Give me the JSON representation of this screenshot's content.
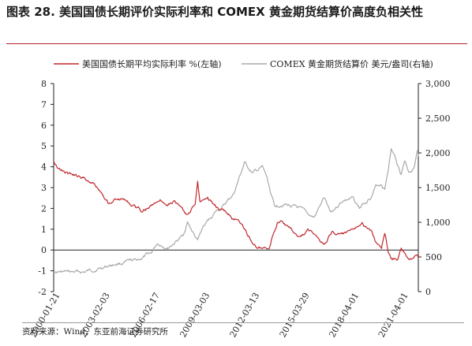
{
  "header": {
    "title": "图表 28. 美国国债长期评价实际利率和 COMEX 黄金期货结算价高度负相关性"
  },
  "footer": {
    "source": "资料来源：Wind，东亚前海证券研究所"
  },
  "colors": {
    "rate_series": "#c0282d",
    "gold_series": "#a9a9a9",
    "title_rule": "#b02020"
  },
  "chart_data": {
    "type": "line",
    "title": "",
    "xlabel": "",
    "ylabel_left": "",
    "ylabel_right": "",
    "x_ticks": [
      "2000-01-21",
      "2003-02-03",
      "2006-02-17",
      "2009-03-03",
      "2012-03-13",
      "2015-03-29",
      "2018-04-01",
      "2021-04-01"
    ],
    "y_left_ticks": [
      "8",
      "7",
      "6",
      "5",
      "4",
      "3",
      "2",
      "1",
      "0",
      "-1",
      "-2"
    ],
    "y_left_range": [
      -2,
      8
    ],
    "y_right_ticks": [
      "3,000",
      "2,500",
      "2,000",
      "1,500",
      "1,000",
      "500",
      "0"
    ],
    "y_right_range": [
      0,
      3000
    ],
    "x_range": [
      "2000-01-21",
      "2022-03-31"
    ],
    "grid": false,
    "legend_position": "top",
    "zero_line": true,
    "series": [
      {
        "name": "美国国债长期平均实际利率 %(左轴)",
        "axis": "left",
        "points": [
          [
            "2000-01-21",
            4.3
          ],
          [
            "2000-07-01",
            3.85
          ],
          [
            "2001-01-01",
            3.65
          ],
          [
            "2001-07-01",
            3.55
          ],
          [
            "2002-01-01",
            3.4
          ],
          [
            "2002-07-01",
            3.2
          ],
          [
            "2003-01-01",
            2.8
          ],
          [
            "2003-06-01",
            2.3
          ],
          [
            "2003-12-01",
            2.5
          ],
          [
            "2004-06-01",
            2.4
          ],
          [
            "2004-12-01",
            2.1
          ],
          [
            "2005-06-01",
            1.9
          ],
          [
            "2005-12-01",
            2.1
          ],
          [
            "2006-06-01",
            2.4
          ],
          [
            "2006-12-01",
            2.3
          ],
          [
            "2007-06-01",
            2.4
          ],
          [
            "2007-12-01",
            1.9
          ],
          [
            "2008-03-01",
            1.6
          ],
          [
            "2008-09-01",
            2.2
          ],
          [
            "2008-10-25",
            3.4
          ],
          [
            "2008-12-15",
            2.4
          ],
          [
            "2009-06-01",
            2.6
          ],
          [
            "2009-12-01",
            2.1
          ],
          [
            "2010-06-01",
            1.9
          ],
          [
            "2010-12-01",
            1.6
          ],
          [
            "2011-06-01",
            1.3
          ],
          [
            "2011-12-01",
            0.7
          ],
          [
            "2012-06-01",
            0.1
          ],
          [
            "2012-12-01",
            0.0
          ],
          [
            "2013-03-01",
            0.0
          ],
          [
            "2013-06-01",
            0.8
          ],
          [
            "2013-09-01",
            1.3
          ],
          [
            "2014-01-01",
            1.3
          ],
          [
            "2014-07-01",
            1.0
          ],
          [
            "2015-01-01",
            0.6
          ],
          [
            "2015-07-01",
            0.9
          ],
          [
            "2016-01-01",
            0.8
          ],
          [
            "2016-07-01",
            0.3
          ],
          [
            "2017-01-01",
            0.9
          ],
          [
            "2017-07-01",
            0.7
          ],
          [
            "2018-01-01",
            0.8
          ],
          [
            "2018-07-01",
            1.0
          ],
          [
            "2018-11-01",
            1.2
          ],
          [
            "2019-06-01",
            0.8
          ],
          [
            "2019-09-01",
            0.4
          ],
          [
            "2020-01-01",
            0.2
          ],
          [
            "2020-03-15",
            0.9
          ],
          [
            "2020-06-01",
            -0.1
          ],
          [
            "2020-08-01",
            -0.4
          ],
          [
            "2021-01-01",
            -0.4
          ],
          [
            "2021-03-15",
            0.0
          ],
          [
            "2021-08-01",
            -0.5
          ],
          [
            "2022-01-01",
            -0.3
          ],
          [
            "2022-03-31",
            -0.4
          ]
        ]
      },
      {
        "name": "COMEX 黄金期货结算价 美元/盎司(右轴)",
        "axis": "right",
        "points": [
          [
            "2000-01-21",
            290
          ],
          [
            "2001-01-01",
            270
          ],
          [
            "2002-01-01",
            280
          ],
          [
            "2003-01-01",
            350
          ],
          [
            "2004-01-01",
            410
          ],
          [
            "2005-01-01",
            430
          ],
          [
            "2006-01-01",
            550
          ],
          [
            "2006-05-15",
            700
          ],
          [
            "2007-01-01",
            640
          ],
          [
            "2007-12-01",
            800
          ],
          [
            "2008-03-15",
            1000
          ],
          [
            "2008-10-25",
            720
          ],
          [
            "2009-03-01",
            930
          ],
          [
            "2009-12-01",
            1150
          ],
          [
            "2010-06-01",
            1240
          ],
          [
            "2011-01-01",
            1400
          ],
          [
            "2011-09-01",
            1850
          ],
          [
            "2012-03-01",
            1700
          ],
          [
            "2012-10-01",
            1780
          ],
          [
            "2013-01-01",
            1650
          ],
          [
            "2013-06-28",
            1220
          ],
          [
            "2014-01-01",
            1280
          ],
          [
            "2014-12-01",
            1200
          ],
          [
            "2015-07-01",
            1100
          ],
          [
            "2015-12-01",
            1060
          ],
          [
            "2016-07-01",
            1340
          ],
          [
            "2016-12-01",
            1150
          ],
          [
            "2017-09-01",
            1320
          ],
          [
            "2018-04-01",
            1340
          ],
          [
            "2018-09-01",
            1200
          ],
          [
            "2019-06-01",
            1400
          ],
          [
            "2019-09-01",
            1520
          ],
          [
            "2020-01-01",
            1560
          ],
          [
            "2020-03-15",
            1480
          ],
          [
            "2020-08-07",
            2060
          ],
          [
            "2020-12-01",
            1880
          ],
          [
            "2021-03-15",
            1700
          ],
          [
            "2021-06-01",
            1900
          ],
          [
            "2021-09-01",
            1750
          ],
          [
            "2022-01-01",
            1800
          ],
          [
            "2022-03-08",
            2000
          ],
          [
            "2022-03-31",
            1950
          ]
        ]
      }
    ]
  }
}
